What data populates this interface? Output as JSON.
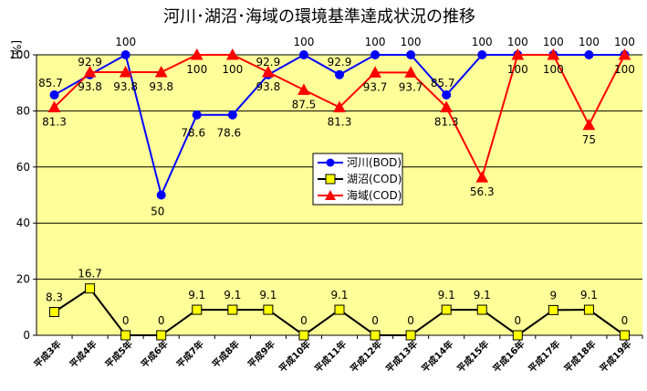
{
  "chart_data": {
    "type": "line",
    "title": "河川･湖沼･海域の環境基準達成状況の推移",
    "ylabel": "[%]",
    "ylim": [
      0,
      100
    ],
    "yticks": [
      "0",
      "20",
      "40",
      "60",
      "80",
      "100"
    ],
    "grid": true,
    "legend_position": "center-right",
    "plot_background": "#ffff99",
    "categories": [
      "平成3年",
      "平成4年",
      "平成5年",
      "平成6年",
      "平成7年",
      "平成8年",
      "平成9年",
      "平成10年",
      "平成11年",
      "平成12年",
      "平成13年",
      "平成14年",
      "平成15年",
      "平成16年",
      "平成17年",
      "平成18年",
      "平成19年"
    ],
    "series": [
      {
        "name": "河川(BOD)",
        "color": "#0000ff",
        "marker": "circle",
        "values": [
          85.7,
          92.9,
          100,
          50,
          78.6,
          78.6,
          92.9,
          100,
          92.9,
          100,
          100,
          85.7,
          100,
          100,
          100,
          100,
          100
        ],
        "labels": [
          "85.7",
          "92.9",
          "100",
          "50",
          "78.6",
          "78.6",
          "92.9",
          "100",
          "92.9",
          "100",
          "100",
          "85.7",
          "100",
          "100",
          "100",
          "100",
          "100"
        ]
      },
      {
        "name": "湖沼(COD)",
        "color": "#000000",
        "marker_fill": "#ffff00",
        "marker": "square",
        "values": [
          8.3,
          16.7,
          0,
          0,
          9.1,
          9.1,
          9.1,
          0,
          9.1,
          0,
          0,
          9.1,
          9.1,
          0,
          9,
          9.1,
          0
        ],
        "labels": [
          "8.3",
          "16.7",
          "0",
          "0",
          "9.1",
          "9.1",
          "9.1",
          "0",
          "9.1",
          "0",
          "0",
          "9.1",
          "9.1",
          "0",
          "9",
          "9.1",
          "0"
        ]
      },
      {
        "name": "海域(COD)",
        "color": "#ff0000",
        "marker": "triangle",
        "values": [
          81.3,
          93.8,
          93.8,
          93.8,
          100,
          100,
          93.8,
          87.5,
          81.3,
          93.7,
          93.7,
          81.3,
          56.3,
          100,
          100,
          75,
          100
        ],
        "labels": [
          "81.3",
          "93.8",
          "93.8",
          "93.8",
          "100",
          "100",
          "93.8",
          "87.5",
          "81.3",
          "93.7",
          "93.7",
          "81.3",
          "56.3",
          "100",
          "100",
          "75",
          "100"
        ]
      }
    ]
  }
}
